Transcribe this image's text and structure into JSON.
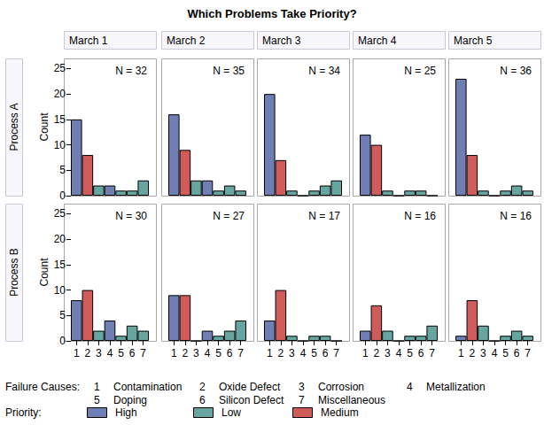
{
  "chart_data": {
    "type": "bar",
    "title": "Which Problems Take Priority?",
    "y_label": "Count",
    "rows": [
      "Process A",
      "Process B"
    ],
    "columns": [
      "March 1",
      "March 2",
      "March 3",
      "March 4",
      "March 5"
    ],
    "categories": [
      "1",
      "2",
      "3",
      "4",
      "5",
      "6",
      "7"
    ],
    "cause_names": [
      "Contamination",
      "Oxide Defect",
      "Corrosion",
      "Metallization",
      "Doping",
      "Silicon Defect",
      "Miscellaneous"
    ],
    "cause_priority": [
      "High",
      "Medium",
      "Low",
      "High",
      "Low",
      "Low",
      "Low"
    ],
    "priorities": [
      {
        "name": "High",
        "color": "#6f7eb3"
      },
      {
        "name": "Low",
        "color": "#66a5a0"
      },
      {
        "name": "Medium",
        "color": "#d05b5b"
      }
    ],
    "legend_titles": {
      "causes": "Failure Causes:",
      "priority": "Priority:"
    },
    "ylim": [
      0,
      27
    ],
    "yticks": [
      0,
      5,
      10,
      15,
      20,
      25
    ],
    "panels": [
      {
        "row": "Process A",
        "column": "March 1",
        "annotation": "N = 32",
        "values": [
          15,
          8,
          2,
          2,
          1,
          1,
          3
        ]
      },
      {
        "row": "Process A",
        "column": "March 2",
        "annotation": "N = 35",
        "values": [
          16,
          9,
          3,
          3,
          1,
          2,
          1
        ]
      },
      {
        "row": "Process A",
        "column": "March 3",
        "annotation": "N = 34",
        "values": [
          20,
          7,
          1,
          0,
          1,
          2,
          3
        ]
      },
      {
        "row": "Process A",
        "column": "March 4",
        "annotation": "N = 25",
        "values": [
          12,
          10,
          1,
          0,
          1,
          1,
          0
        ]
      },
      {
        "row": "Process A",
        "column": "March 5",
        "annotation": "N = 36",
        "values": [
          23,
          8,
          1,
          0,
          1,
          2,
          1
        ]
      },
      {
        "row": "Process B",
        "column": "March 1",
        "annotation": "N = 30",
        "values": [
          8,
          10,
          2,
          4,
          1,
          3,
          2
        ]
      },
      {
        "row": "Process B",
        "column": "March 2",
        "annotation": "N = 27",
        "values": [
          9,
          9,
          0,
          2,
          1,
          2,
          4
        ]
      },
      {
        "row": "Process B",
        "column": "March 3",
        "annotation": "N = 17",
        "values": [
          4,
          10,
          1,
          0,
          1,
          1,
          0
        ]
      },
      {
        "row": "Process B",
        "column": "March 4",
        "annotation": "N = 16",
        "values": [
          2,
          7,
          2,
          0,
          1,
          1,
          3
        ]
      },
      {
        "row": "Process B",
        "column": "March 5",
        "annotation": "N = 16",
        "values": [
          1,
          8,
          3,
          0,
          1,
          2,
          1
        ]
      }
    ]
  }
}
